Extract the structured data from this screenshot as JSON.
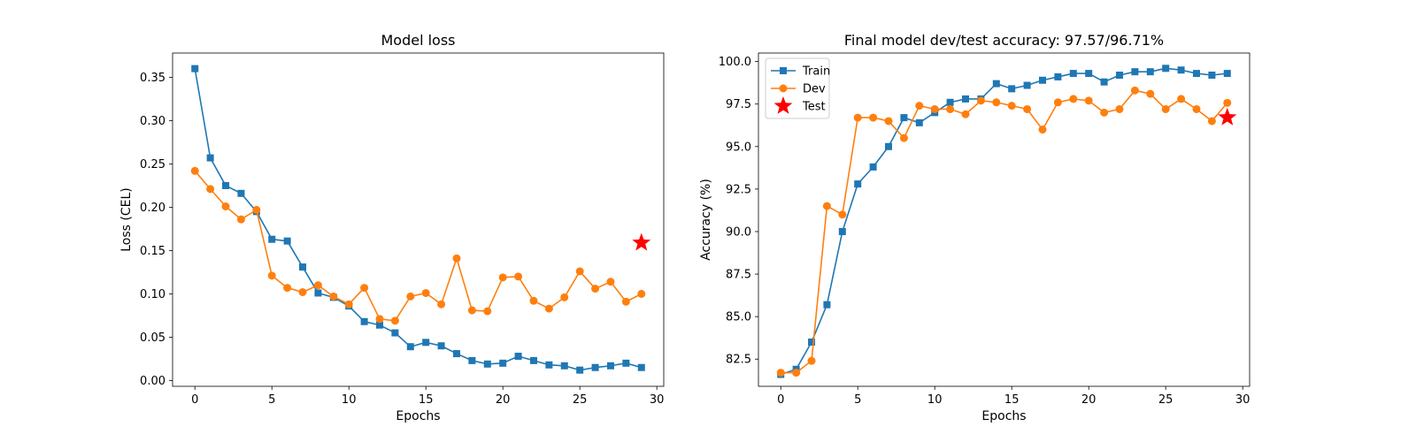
{
  "colors": {
    "train": "#1f77b4",
    "dev": "#ff7f0e",
    "test": "#ff0000"
  },
  "chart_data": [
    {
      "type": "line",
      "title": "Model loss",
      "xlabel": "Epochs",
      "ylabel": "Loss (CEL)",
      "xlim": [
        -1.45,
        30.45
      ],
      "ylim": [
        -0.0067,
        0.378
      ],
      "xticks": [
        0,
        5,
        10,
        15,
        20,
        25,
        30
      ],
      "xtick_labels": [
        "0",
        "5",
        "10",
        "15",
        "20",
        "25",
        "30"
      ],
      "yticks": [
        0.0,
        0.05,
        0.1,
        0.15,
        0.2,
        0.25,
        0.3,
        0.35
      ],
      "ytick_labels": [
        "0.00",
        "0.05",
        "0.10",
        "0.15",
        "0.20",
        "0.25",
        "0.30",
        "0.35"
      ],
      "legend": null,
      "series": [
        {
          "key": "train",
          "marker": "square",
          "x": [
            0,
            1,
            2,
            3,
            4,
            5,
            6,
            7,
            8,
            9,
            10,
            11,
            12,
            13,
            14,
            15,
            16,
            17,
            18,
            19,
            20,
            21,
            22,
            23,
            24,
            25,
            26,
            27,
            28,
            29
          ],
          "values": [
            0.36,
            0.257,
            0.225,
            0.216,
            0.195,
            0.163,
            0.161,
            0.131,
            0.101,
            0.096,
            0.086,
            0.068,
            0.064,
            0.055,
            0.039,
            0.044,
            0.04,
            0.031,
            0.023,
            0.019,
            0.02,
            0.028,
            0.023,
            0.018,
            0.017,
            0.012,
            0.015,
            0.017,
            0.02,
            0.015
          ]
        },
        {
          "key": "dev",
          "marker": "circle",
          "x": [
            0,
            1,
            2,
            3,
            4,
            5,
            6,
            7,
            8,
            9,
            10,
            11,
            12,
            13,
            14,
            15,
            16,
            17,
            18,
            19,
            20,
            21,
            22,
            23,
            24,
            25,
            26,
            27,
            28,
            29
          ],
          "values": [
            0.242,
            0.221,
            0.201,
            0.186,
            0.197,
            0.121,
            0.107,
            0.102,
            0.11,
            0.097,
            0.088,
            0.107,
            0.071,
            0.069,
            0.097,
            0.101,
            0.088,
            0.141,
            0.081,
            0.08,
            0.119,
            0.12,
            0.092,
            0.083,
            0.096,
            0.126,
            0.106,
            0.114,
            0.091,
            0.1
          ]
        },
        {
          "key": "test",
          "marker": "star",
          "x": [
            29
          ],
          "values": [
            0.159
          ]
        }
      ]
    },
    {
      "type": "line",
      "title": "Final model dev/test accuracy: 97.57/96.71%",
      "xlabel": "Epochs",
      "ylabel": "Accuracy (%)",
      "xlim": [
        -1.45,
        30.45
      ],
      "ylim": [
        80.9,
        100.5
      ],
      "xticks": [
        0,
        5,
        10,
        15,
        20,
        25,
        30
      ],
      "xtick_labels": [
        "0",
        "5",
        "10",
        "15",
        "20",
        "25",
        "30"
      ],
      "yticks": [
        82.5,
        85.0,
        87.5,
        90.0,
        92.5,
        95.0,
        97.5,
        100.0
      ],
      "ytick_labels": [
        "82.5",
        "85.0",
        "87.5",
        "90.0",
        "92.5",
        "95.0",
        "97.5",
        "100.0"
      ],
      "legend": {
        "placement": "top-left",
        "entries": [
          {
            "key": "train",
            "label": "Train",
            "marker": "square"
          },
          {
            "key": "dev",
            "label": "Dev",
            "marker": "circle"
          },
          {
            "key": "test",
            "label": "Test",
            "marker": "star"
          }
        ]
      },
      "series": [
        {
          "key": "train",
          "marker": "square",
          "name": "Train",
          "x": [
            0,
            1,
            2,
            3,
            4,
            5,
            6,
            7,
            8,
            9,
            10,
            11,
            12,
            13,
            14,
            15,
            16,
            17,
            18,
            19,
            20,
            21,
            22,
            23,
            24,
            25,
            26,
            27,
            28,
            29
          ],
          "values": [
            81.6,
            81.9,
            83.5,
            85.7,
            90.0,
            92.8,
            93.8,
            95.0,
            96.7,
            96.4,
            97.0,
            97.6,
            97.8,
            97.8,
            98.7,
            98.4,
            98.6,
            98.9,
            99.1,
            99.3,
            99.3,
            98.8,
            99.2,
            99.4,
            99.4,
            99.6,
            99.5,
            99.3,
            99.2,
            99.3
          ]
        },
        {
          "key": "dev",
          "marker": "circle",
          "name": "Dev",
          "x": [
            0,
            1,
            2,
            3,
            4,
            5,
            6,
            7,
            8,
            9,
            10,
            11,
            12,
            13,
            14,
            15,
            16,
            17,
            18,
            19,
            20,
            21,
            22,
            23,
            24,
            25,
            26,
            27,
            28,
            29
          ],
          "values": [
            81.7,
            81.7,
            82.4,
            91.5,
            91.0,
            96.7,
            96.7,
            96.5,
            95.5,
            97.4,
            97.2,
            97.2,
            96.9,
            97.7,
            97.6,
            97.4,
            97.2,
            96.0,
            97.6,
            97.8,
            97.7,
            97.0,
            97.2,
            98.3,
            98.1,
            97.2,
            97.8,
            97.2,
            96.5,
            97.57
          ]
        },
        {
          "key": "test",
          "marker": "star",
          "name": "Test",
          "x": [
            29
          ],
          "values": [
            96.71
          ]
        }
      ]
    }
  ]
}
